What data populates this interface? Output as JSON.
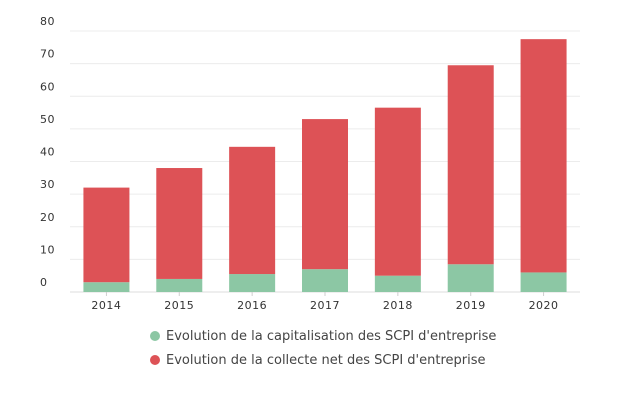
{
  "chart_data": {
    "type": "bar",
    "stacked": true,
    "categories": [
      "2014",
      "2015",
      "2016",
      "2017",
      "2018",
      "2019",
      "2020"
    ],
    "series": [
      {
        "name": "Evolution de la capitalisation des SCPI d'entreprise",
        "color": "#8cc7a4",
        "values": [
          3,
          4,
          5.5,
          7,
          5,
          8.5,
          6
        ]
      },
      {
        "name": "Evolution de la collecte net des SCPI d'entreprise",
        "color": "#dd5256",
        "values": [
          29,
          34,
          39,
          46,
          51.5,
          61,
          71.5
        ]
      }
    ],
    "ylim": [
      0,
      80
    ],
    "yticks": [
      0,
      10,
      20,
      30,
      40,
      50,
      60,
      70,
      80
    ],
    "grid": true,
    "legend_position": "bottom"
  }
}
